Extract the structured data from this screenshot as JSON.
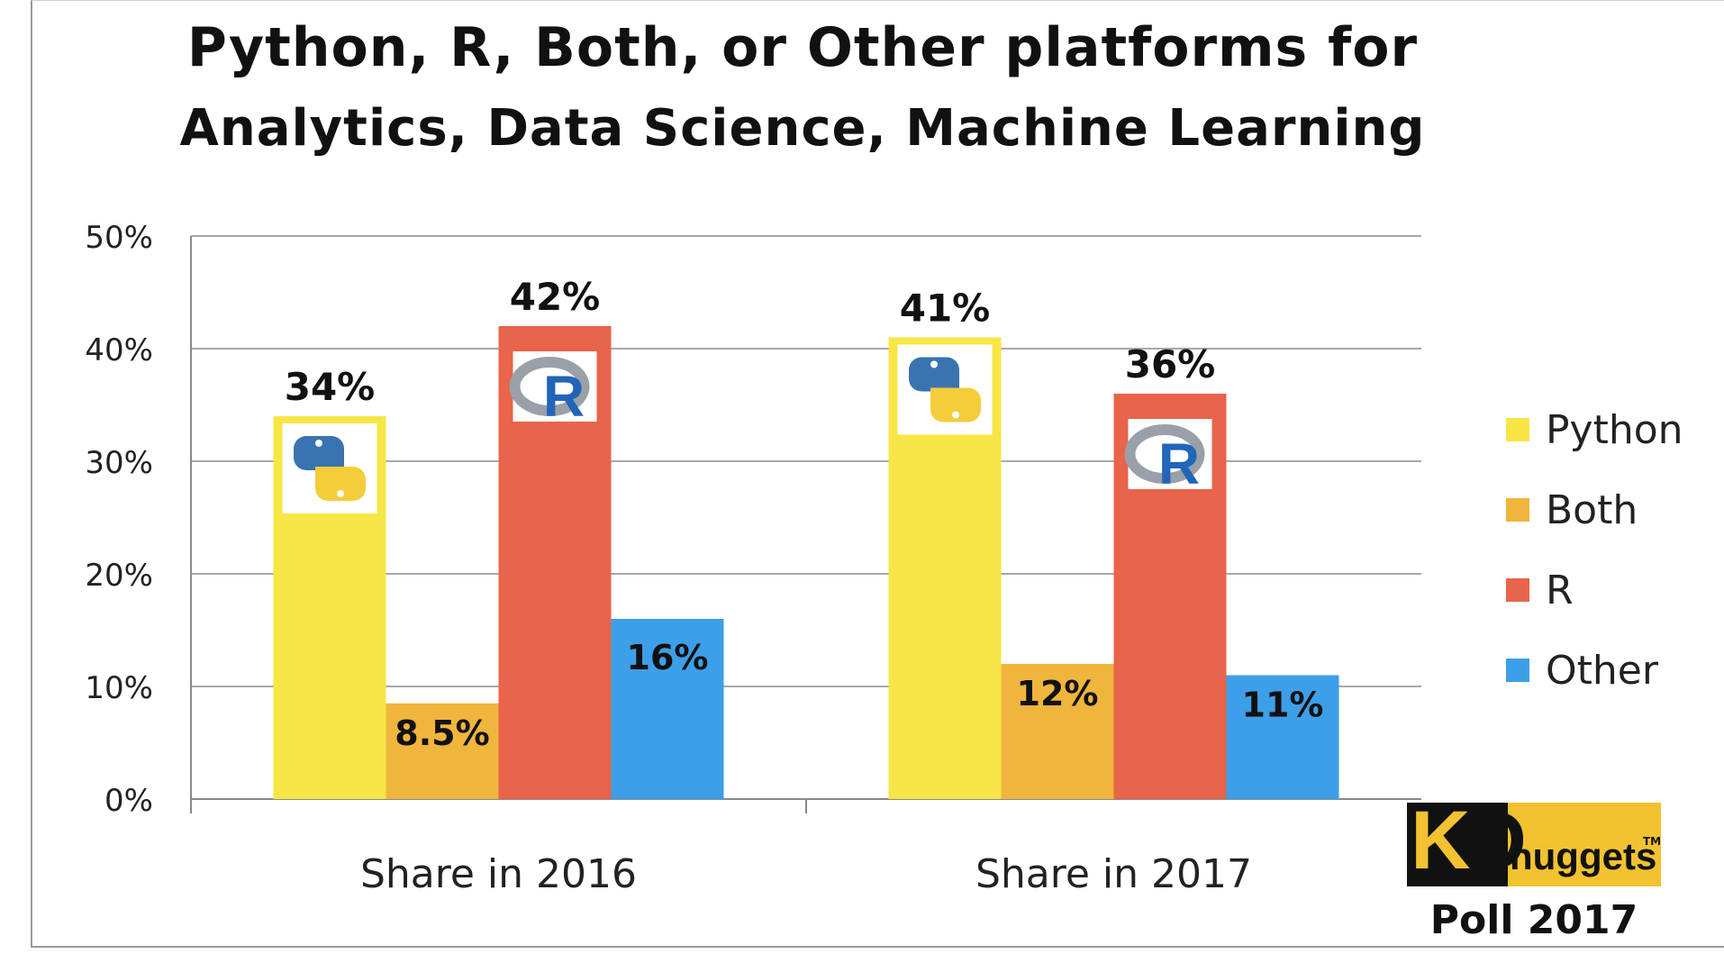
{
  "chart_data": {
    "type": "bar",
    "title": "Python, R, Both, or Other platforms for",
    "subtitle": "Analytics, Data Science, Machine Learning",
    "categories": [
      "Share in 2016",
      "Share in 2017"
    ],
    "series": [
      {
        "name": "Python",
        "values": [
          34,
          41
        ],
        "labels": [
          "34%",
          "41%"
        ],
        "color": "#f7e646",
        "icon": "python-logo-icon"
      },
      {
        "name": "Both",
        "values": [
          8.5,
          12
        ],
        "labels": [
          "8.5%",
          "12%"
        ],
        "color": "#f0b53c"
      },
      {
        "name": "R",
        "values": [
          42,
          36
        ],
        "labels": [
          "42%",
          "36%"
        ],
        "color": "#e8644a",
        "icon": "r-logo-icon"
      },
      {
        "name": "Other",
        "values": [
          16,
          11
        ],
        "labels": [
          "16%",
          "11%"
        ],
        "color": "#3d9fe8"
      }
    ],
    "ylim": [
      0,
      50
    ],
    "yticks": [
      "0%",
      "10%",
      "20%",
      "30%",
      "40%",
      "50%"
    ],
    "grid": true,
    "legend": "right"
  },
  "branding": {
    "logo_letters_k": "K",
    "logo_letters_d": "D",
    "logo_word": "nuggets",
    "logo_tm": "TM",
    "poll": "Poll 2017"
  }
}
